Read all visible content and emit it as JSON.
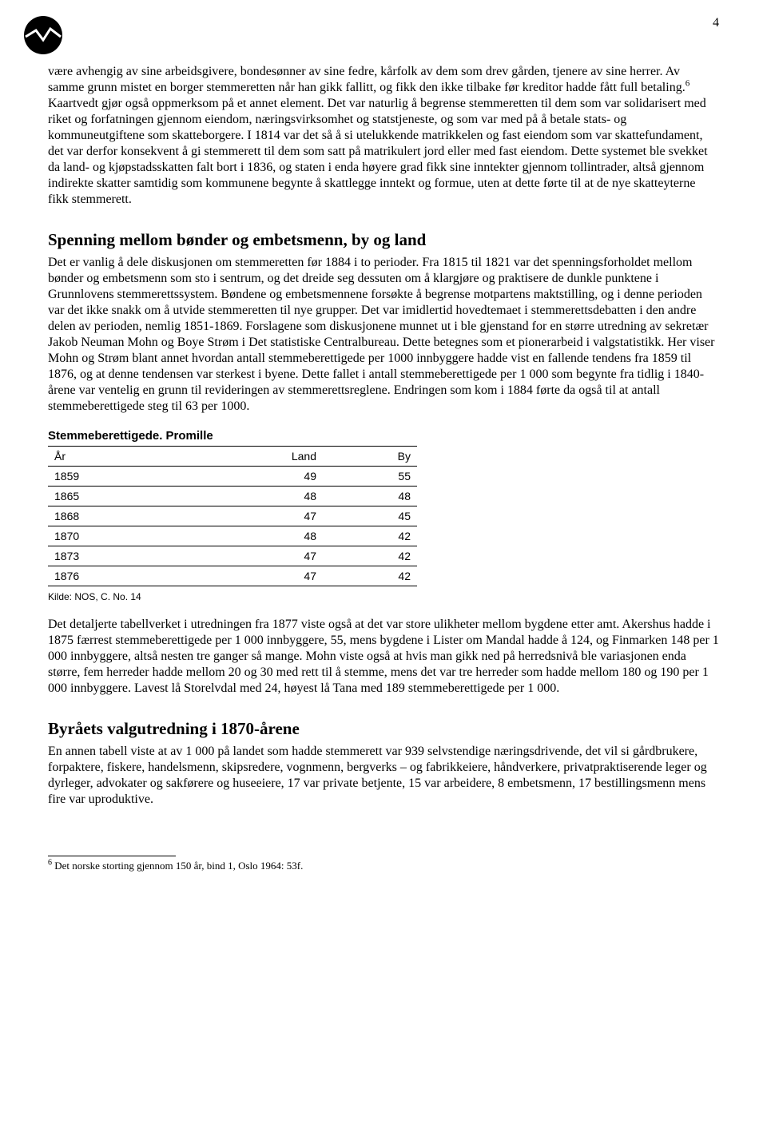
{
  "page_number": "4",
  "logo": {
    "name": "circle-zigzag-logo",
    "bg_color": "#000000",
    "stroke_color": "#ffffff"
  },
  "paragraphs": {
    "p1_a": "være avhengig av sine arbeidsgivere, bondesønner av sine fedre, kårfolk av dem som drev gården, tjenere av sine herrer. Av samme grunn mistet en borger stemmeretten når han gikk fallitt, og fikk den ikke tilbake før kreditor hadde fått full betaling.",
    "p1_sup": "6",
    "p1_b": " Kaartvedt gjør også oppmerksom på et annet element. Det var naturlig å begrense stemmeretten til dem som var solidarisert med riket og forfatningen gjennom eiendom, næringsvirksomhet og statstjeneste, og som var med på å betale stats- og kommuneutgiftene som skatteborgere. I 1814 var det så å si utelukkende matrikkelen og fast eiendom som var skattefundament, det var derfor konsekvent å gi stemmerett til dem som satt på matrikulert jord eller med fast eiendom. Dette systemet ble svekket da land- og kjøpstadsskatten falt bort i 1836, og staten i enda høyere grad fikk sine inntekter gjennom tollintrader, altså gjennom indirekte skatter samtidig som kommunene begynte å skattlegge inntekt og formue, uten at dette førte til at de nye skatteyterne fikk stemmerett.",
    "h1": "Spenning mellom bønder og embetsmenn, by og land",
    "p2": "Det er vanlig å dele diskusjonen om stemmeretten før 1884 i to perioder. Fra 1815 til 1821 var det spenningsforholdet mellom bønder og embetsmenn som sto i sentrum, og det dreide seg dessuten om å klargjøre og praktisere de dunkle punktene i Grunnlovens stemmerettssystem. Bøndene og embetsmennene forsøkte å begrense motpartens maktstilling, og i denne perioden var det ikke snakk om å utvide stemmeretten til nye grupper. Det var imidlertid hovedtemaet i stemmerettsdebatten i den andre delen av perioden, nemlig 1851-1869. Forslagene som diskusjonene munnet ut i ble gjenstand for en større utredning av sekretær Jakob Neuman Mohn og Boye Strøm i Det statistiske Centralbureau. Dette betegnes som et pionerarbeid i valgstatistikk. Her viser Mohn og Strøm blant annet hvordan antall stemmeberettigede per 1000 innbyggere hadde vist en fallende tendens fra 1859 til 1876, og at denne tendensen var sterkest i byene. Dette fallet i antall stemmeberettigede per 1 000 som begynte fra tidlig i 1840-årene var ventelig en grunn til revideringen av stemmerettsreglene. Endringen som kom i 1884 førte da også til at antall stemmeberettigede steg til 63 per 1000.",
    "p3": "Det detaljerte tabellverket i utredningen fra 1877 viste også at det var store ulikheter mellom bygdene etter amt. Akershus hadde i 1875 færrest stemmeberettigede per 1 000 innbyggere, 55, mens bygdene i Lister om Mandal hadde å 124, og Finmarken 148 per 1 000 innbyggere, altså nesten tre ganger så mange. Mohn viste også at hvis man gikk ned på herredsnivå ble variasjonen enda større, fem herreder hadde mellom 20 og 30 med rett til å stemme, mens det var tre herreder som hadde mellom 180 og 190 per 1 000 innbyggere. Lavest lå Storelvdal med 24, høyest lå Tana med 189 stemmeberettigede per 1 000.",
    "h2": "Byråets valgutredning i 1870-årene",
    "p4": "En annen tabell viste at av 1 000 på landet som hadde stemmerett var 939 selvstendige næringsdrivende, det vil si gårdbrukere, forpaktere, fiskere, handelsmenn, skipsredere, vognmenn, bergverks – og fabrikkeiere, håndverkere, privatpraktiserende leger og dyrleger, advokater og sakførere og huseeiere, 17 var private betjente, 15 var arbeidere, 8 embetsmenn, 17 bestillingsmenn mens fire var uproduktive."
  },
  "table": {
    "title": "Stemmeberettigede. Promille",
    "headers": [
      "År",
      "Land",
      "By"
    ],
    "rows": [
      [
        "1859",
        "49",
        "55"
      ],
      [
        "1865",
        "48",
        "48"
      ],
      [
        "1868",
        "47",
        "45"
      ],
      [
        "1870",
        "48",
        "42"
      ],
      [
        "1873",
        "47",
        "42"
      ],
      [
        "1876",
        "47",
        "42"
      ]
    ],
    "source": "Kilde: NOS, C. No. 14",
    "col_align": [
      "left",
      "right",
      "right"
    ]
  },
  "footnote": {
    "marker": "6",
    "text": " Det norske storting gjennom 150 år, bind 1, Oslo 1964: 53f."
  }
}
